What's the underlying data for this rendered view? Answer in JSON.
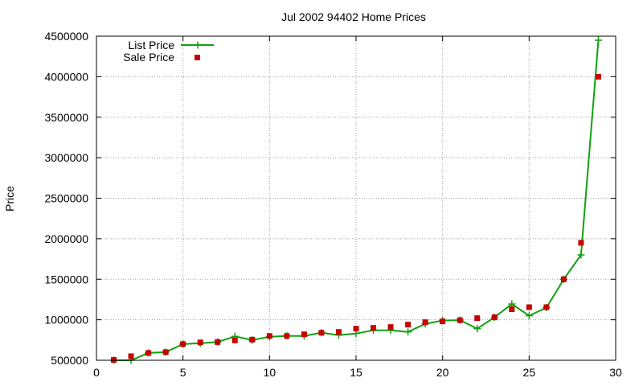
{
  "chart_data": {
    "type": "line",
    "title": "Jul 2002 94402 Home Prices",
    "xlabel": "",
    "ylabel": "Price",
    "xlim": [
      0,
      30
    ],
    "ylim": [
      500000,
      4500000
    ],
    "xticks": [
      0,
      5,
      10,
      15,
      20,
      25,
      30
    ],
    "yticks": [
      500000,
      1000000,
      1500000,
      2000000,
      2500000,
      3000000,
      3500000,
      4000000,
      4500000
    ],
    "grid": true,
    "legend": "top-left",
    "series": [
      {
        "name": "List Price",
        "style": "line+plus",
        "color": "#11a011",
        "x": [
          1,
          2,
          3,
          4,
          5,
          6,
          7,
          8,
          9,
          10,
          11,
          12,
          13,
          14,
          15,
          16,
          17,
          18,
          19,
          20,
          21,
          22,
          23,
          24,
          25,
          26,
          27,
          28,
          29
        ],
        "values": [
          500000,
          500000,
          590000,
          600000,
          700000,
          710000,
          725000,
          795000,
          750000,
          790000,
          800000,
          800000,
          840000,
          810000,
          830000,
          870000,
          870000,
          850000,
          950000,
          990000,
          995000,
          890000,
          1030000,
          1195000,
          1050000,
          1150000,
          1500000,
          1800000,
          4450000
        ]
      },
      {
        "name": "Sale Price",
        "style": "square",
        "color": "#c80000",
        "x": [
          1,
          2,
          3,
          4,
          5,
          6,
          7,
          8,
          9,
          10,
          11,
          12,
          13,
          14,
          15,
          16,
          17,
          18,
          19,
          20,
          21,
          22,
          23,
          24,
          25,
          26,
          27,
          28,
          29
        ],
        "values": [
          505000,
          550000,
          590000,
          600000,
          700000,
          720000,
          725000,
          745000,
          755000,
          800000,
          800000,
          820000,
          840000,
          850000,
          890000,
          900000,
          910000,
          940000,
          970000,
          980000,
          995000,
          1020000,
          1030000,
          1130000,
          1155000,
          1155000,
          1500000,
          1950000,
          4000000
        ]
      }
    ]
  }
}
